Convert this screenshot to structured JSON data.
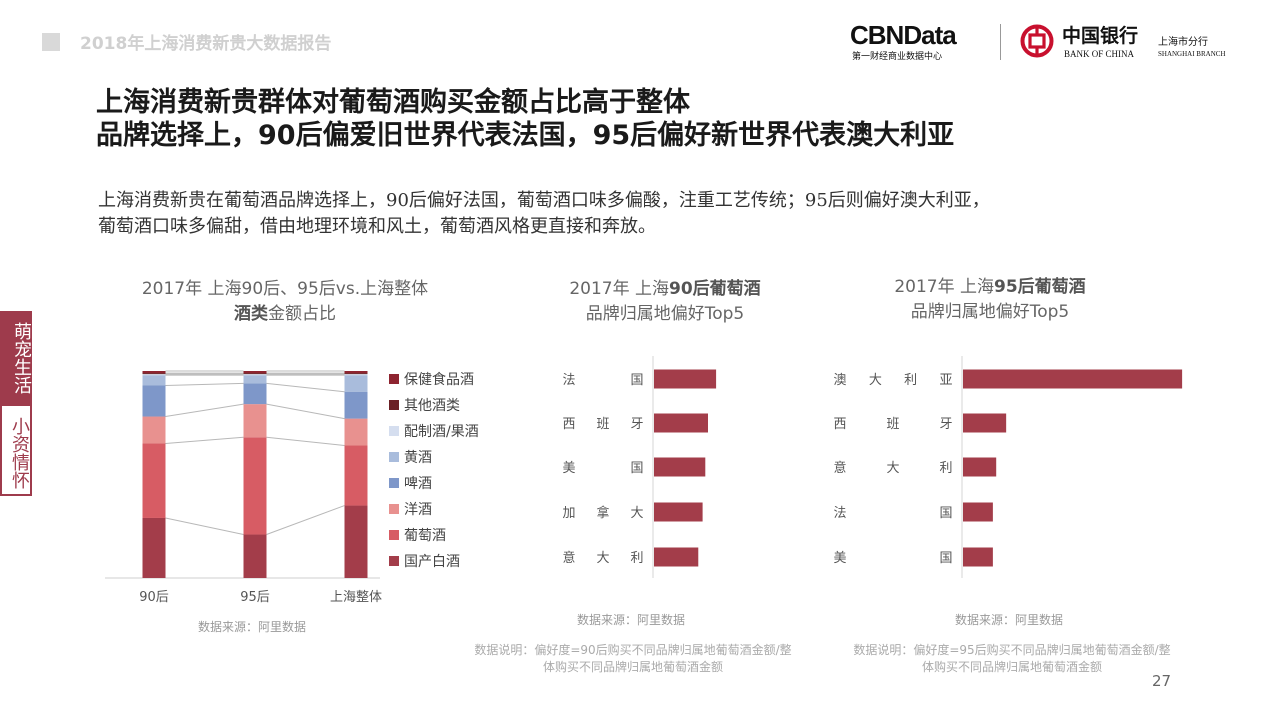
{
  "header": {
    "report_title": "2018年上海消费新贵大数据报告",
    "cbn_logo": "CBNData",
    "cbn_subtitle": "第一财经商业数据中心",
    "boc_name_cn": "中国银行",
    "boc_branch_cn": "上海市分行",
    "boc_name_en": "BANK OF CHINA",
    "boc_branch_en": "SHANGHAI BRANCH",
    "brand_color": "#c8102e"
  },
  "headline": {
    "line1": "上海消费新贵群体对葡萄酒购买金额占比高于整体",
    "line2": "品牌选择上，90后偏爱旧世界代表法国，95后偏好新世界代表澳大利亚"
  },
  "body": {
    "line1": "上海消费新贵在葡萄酒品牌选择上，90后偏好法国，葡萄酒口味多偏酸，注重工艺传统；95后则偏好澳大利亚，",
    "line2": "葡萄酒口味多偏甜，借由地理环境和风土，葡萄酒风格更直接和奔放。"
  },
  "side_tab": {
    "top": "萌宠生活",
    "bottom": "小资情怀",
    "color": "#9e3b4c"
  },
  "footer": {
    "page_number": "27"
  },
  "chart_data": [
    {
      "type": "bar",
      "stacked": true,
      "title_line1": "2017年 上海90后、95后vs.上海整体",
      "title_bold": "酒类",
      "title_rest": "金额占比",
      "categories": [
        "90后",
        "95后",
        "上海整体"
      ],
      "ylim": [
        0,
        100
      ],
      "legend_position": "right",
      "series": [
        {
          "name": "国产白酒",
          "color": "#a33d4a",
          "values": [
            29,
            21,
            35
          ]
        },
        {
          "name": "葡萄酒",
          "color": "#d75c64",
          "values": [
            36,
            47,
            29
          ]
        },
        {
          "name": "洋酒",
          "color": "#e8918f",
          "values": [
            13,
            16,
            13
          ]
        },
        {
          "name": "啤酒",
          "color": "#7e97c9",
          "values": [
            15,
            10,
            13
          ]
        },
        {
          "name": "黄酒",
          "color": "#a9bcdc",
          "values": [
            5,
            4,
            8
          ]
        },
        {
          "name": "配制酒/果酒",
          "color": "#d5deef",
          "values": [
            0.5,
            0.5,
            0.5
          ]
        },
        {
          "name": "其他酒类",
          "color": "#6b2025",
          "values": [
            0.5,
            0.5,
            0.5
          ]
        },
        {
          "name": "保健食品酒",
          "color": "#8e2430",
          "values": [
            1,
            1,
            1
          ]
        }
      ],
      "source": "数据来源：阿里数据"
    },
    {
      "type": "bar",
      "orientation": "horizontal",
      "title_line1_plain": "2017年 上海",
      "title_line1_bold": "90后葡萄酒",
      "title_line2": "品牌归属地偏好Top5",
      "categories": [
        "法国",
        "西班牙",
        "美国",
        "加拿大",
        "意大利"
      ],
      "category_labels": [
        [
          "法",
          "",
          "国"
        ],
        [
          "西",
          "班",
          "牙"
        ],
        [
          "美",
          "",
          "国"
        ],
        [
          "加",
          "拿",
          "大"
        ],
        [
          "意",
          "大",
          "利"
        ]
      ],
      "values": [
        1.15,
        1.0,
        0.95,
        0.9,
        0.82
      ],
      "color": "#a33d4a",
      "source": "数据来源：阿里数据",
      "note": "数据说明：偏好度=90后购买不同品牌归属地葡萄酒金额/整体购买不同品牌归属地葡萄酒金额"
    },
    {
      "type": "bar",
      "orientation": "horizontal",
      "title_line1_plain": "2017年 上海",
      "title_line1_bold": "95后葡萄酒",
      "title_line2": "品牌归属地偏好Top5",
      "categories": [
        "澳大利亚",
        "西班牙",
        "意大利",
        "法国",
        "美国"
      ],
      "category_labels": [
        [
          "澳",
          "大",
          "利",
          "亚"
        ],
        [
          "西",
          "班",
          "牙"
        ],
        [
          "意",
          "大",
          "利"
        ],
        [
          "法",
          "",
          "国"
        ],
        [
          "美",
          "",
          "国"
        ]
      ],
      "values": [
        3.3,
        0.65,
        0.5,
        0.45,
        0.45
      ],
      "color": "#a33d4a",
      "source": "数据来源：阿里数据",
      "note": "数据说明：偏好度=95后购买不同品牌归属地葡萄酒金额/整体购买不同品牌归属地葡萄酒金额"
    }
  ]
}
